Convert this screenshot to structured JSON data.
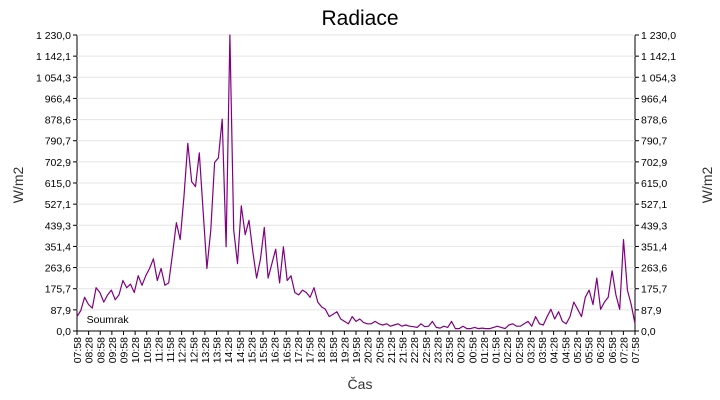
{
  "chart_data": {
    "type": "line",
    "title": "Radiace",
    "xlabel": "Čas",
    "ylabel": "W/m2",
    "ylabel_right": "W/m2",
    "ylim": [
      0,
      1230
    ],
    "y_ticks": [
      "0,0",
      "87,9",
      "175,7",
      "263,6",
      "351,4",
      "439,3",
      "527,1",
      "615,0",
      "702,9",
      "790,7",
      "878,6",
      "966,4",
      "1 054,3",
      "1 142,1",
      "1 230,0"
    ],
    "x_ticks": [
      "07:58",
      "08:28",
      "08:58",
      "09:28",
      "09:58",
      "10:28",
      "10:58",
      "11:28",
      "11:58",
      "12:28",
      "12:58",
      "13:28",
      "13:58",
      "14:28",
      "14:58",
      "15:28",
      "15:58",
      "16:28",
      "16:58",
      "17:28",
      "17:58",
      "18:28",
      "18:58",
      "19:28",
      "19:58",
      "20:28",
      "20:58",
      "21:28",
      "21:58",
      "22:28",
      "22:58",
      "23:28",
      "23:58",
      "00:28",
      "00:58",
      "01:28",
      "01:58",
      "02:28",
      "02:58",
      "03:28",
      "03:58",
      "04:28",
      "04:58",
      "05:28",
      "05:58",
      "06:28",
      "06:58",
      "07:28",
      "07:58"
    ],
    "grid": true,
    "annotations": [
      {
        "text": "Soumrak",
        "at_x": "08:28"
      }
    ],
    "series": [
      {
        "color": "#800080",
        "comment": "Radiation values (W/m2) approx. every 15 minutes from 07:58 to 07:58",
        "values": [
          60,
          85,
          140,
          110,
          95,
          180,
          160,
          120,
          150,
          170,
          130,
          150,
          210,
          180,
          195,
          160,
          230,
          190,
          230,
          260,
          300,
          210,
          260,
          190,
          200,
          320,
          450,
          380,
          560,
          780,
          620,
          600,
          740,
          500,
          260,
          420,
          700,
          720,
          880,
          350,
          1230,
          420,
          280,
          520,
          400,
          460,
          330,
          220,
          300,
          430,
          220,
          280,
          340,
          200,
          350,
          210,
          230,
          160,
          150,
          170,
          160,
          140,
          180,
          120,
          100,
          90,
          60,
          70,
          80,
          50,
          40,
          30,
          60,
          40,
          50,
          35,
          30,
          30,
          40,
          30,
          25,
          30,
          20,
          25,
          30,
          20,
          25,
          20,
          18,
          15,
          30,
          18,
          20,
          40,
          15,
          12,
          20,
          15,
          40,
          10,
          10,
          20,
          10,
          10,
          15,
          10,
          12,
          10,
          10,
          15,
          20,
          15,
          10,
          25,
          30,
          20,
          20,
          30,
          40,
          20,
          60,
          30,
          25,
          60,
          90,
          50,
          80,
          40,
          30,
          60,
          120,
          90,
          60,
          140,
          170,
          110,
          220,
          90,
          120,
          140,
          250,
          150,
          90,
          380,
          170,
          110,
          30
        ]
      }
    ]
  }
}
